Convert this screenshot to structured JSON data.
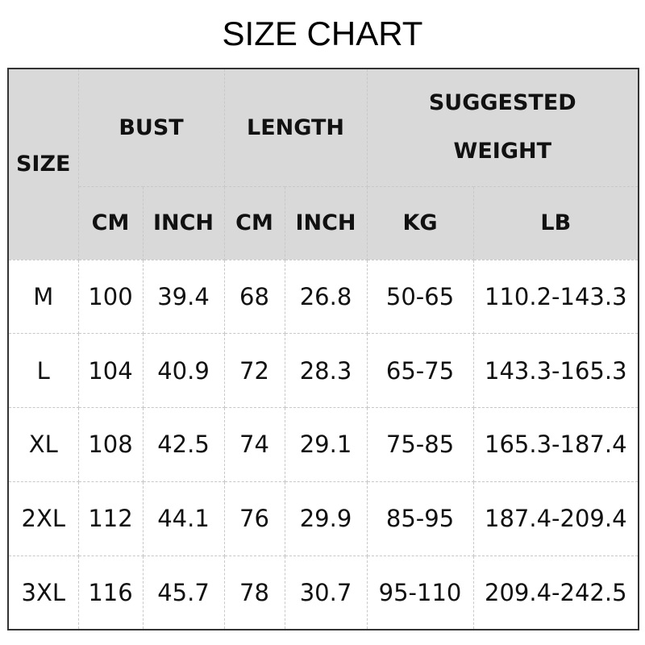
{
  "title": "SIZE CHART",
  "header": {
    "size": "SIZE",
    "bust": "BUST",
    "length": "LENGTH",
    "weight_line1": "SUGGESTED",
    "weight_line2": "WEIGHT",
    "sub": [
      "CM",
      "INCH",
      "CM",
      "INCH",
      "KG",
      "LB"
    ]
  },
  "rows": [
    [
      "M",
      "100",
      "39.4",
      "68",
      "26.8",
      "50-65",
      "110.2-143.3"
    ],
    [
      "L",
      "104",
      "40.9",
      "72",
      "28.3",
      "65-75",
      "143.3-165.3"
    ],
    [
      "XL",
      "108",
      "42.5",
      "74",
      "29.1",
      "75-85",
      "165.3-187.4"
    ],
    [
      "2XL",
      "112",
      "44.1",
      "76",
      "29.9",
      "85-95",
      "187.4-209.4"
    ],
    [
      "3XL",
      "116",
      "45.7",
      "78",
      "30.7",
      "95-110",
      "209.4-242.5"
    ]
  ],
  "colors": {
    "header_bg": "#d9d9d9",
    "border": "#333333",
    "grid": "#c8c8c8"
  }
}
